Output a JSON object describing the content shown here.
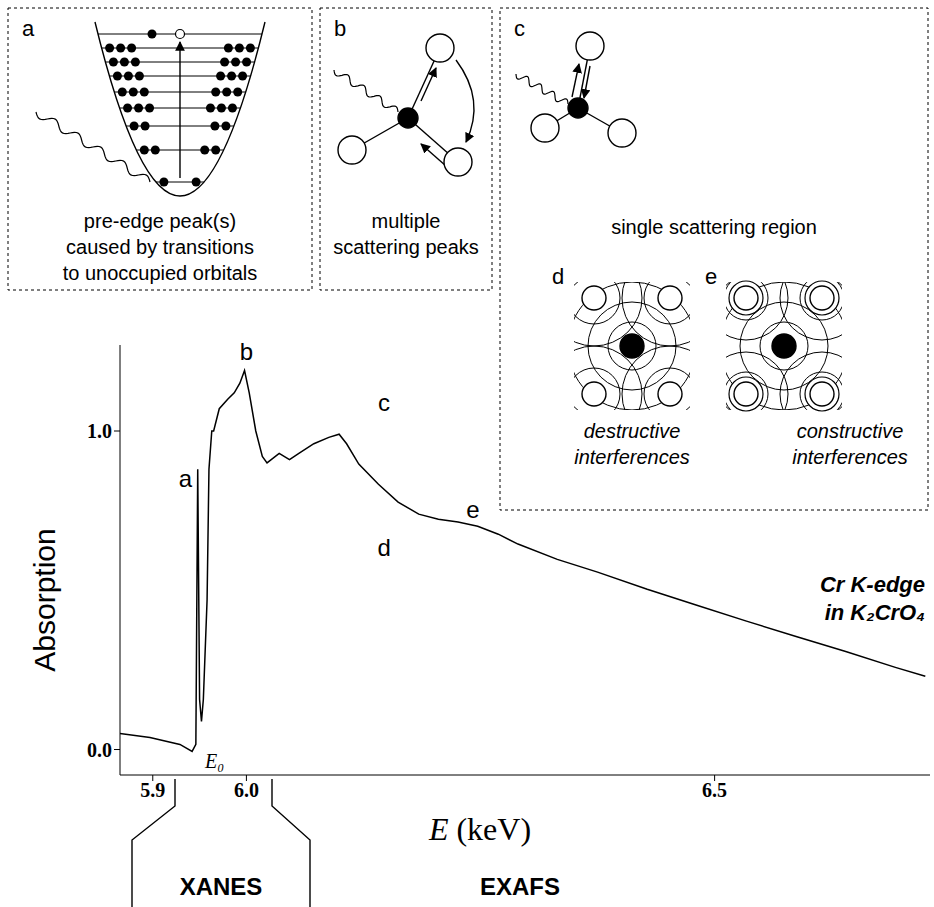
{
  "chart_data": {
    "type": "line",
    "x_label": "E (keV)",
    "y_label": "Absorption",
    "color": "#000000",
    "x": [
      5.865,
      5.897,
      5.929,
      5.942,
      5.946,
      5.948,
      5.95,
      5.952,
      5.954,
      5.958,
      5.96,
      5.963,
      5.965,
      5.971,
      5.98,
      5.987,
      5.993,
      5.998,
      6.003,
      6.01,
      6.017,
      6.022,
      6.035,
      6.046,
      6.056,
      6.072,
      6.088,
      6.099,
      6.107,
      6.12,
      6.141,
      6.162,
      6.184,
      6.205,
      6.226,
      6.247,
      6.269,
      6.29,
      6.332,
      6.375,
      6.428,
      6.481,
      6.534,
      6.587,
      6.64,
      6.693,
      6.725
    ],
    "values": [
      0.05,
      0.038,
      0.016,
      -0.006,
      0.016,
      0.88,
      0.157,
      0.088,
      0.157,
      0.47,
      0.88,
      1.0,
      1.0,
      1.07,
      1.1,
      1.12,
      1.15,
      1.19,
      1.12,
      1.0,
      0.92,
      0.9,
      0.93,
      0.91,
      0.93,
      0.96,
      0.98,
      0.99,
      0.96,
      0.896,
      0.833,
      0.777,
      0.739,
      0.723,
      0.714,
      0.701,
      0.676,
      0.645,
      0.597,
      0.557,
      0.503,
      0.453,
      0.403,
      0.355,
      0.308,
      0.258,
      0.23
    ],
    "xlim": [
      5.865,
      6.73
    ],
    "ylim": [
      -0.08,
      1.27
    ],
    "xticks": [
      5.9,
      {
        "value": 6.0,
        "label": "6.0"
      },
      6.5
    ],
    "yticks": [
      {
        "value": 0,
        "label": "0.0"
      },
      {
        "value": 1,
        "label": "1.0"
      }
    ],
    "grid": false,
    "annotations": [
      {
        "text": "a",
        "x": 5.935,
        "y": 0.85
      },
      {
        "text": "b",
        "x": 6.0,
        "y": 1.25
      },
      {
        "text": "c",
        "x": 6.147,
        "y": 1.09
      },
      {
        "text": "d",
        "x": 6.147,
        "y": 0.635
      },
      {
        "text": "e",
        "x": 6.242,
        "y": 0.755
      }
    ],
    "edge_label": {
      "text": "E₀",
      "x": 5.966,
      "y": -0.035
    },
    "sample_label": [
      "Cr K-edge",
      "in K₂CrO₄"
    ],
    "regions": [
      "XANES",
      "EXAFS"
    ]
  },
  "insets": [
    {
      "letter": "a",
      "caption": [
        "pre-edge peak(s)",
        "caused by transitions",
        "to unoccupied orbitals"
      ]
    },
    {
      "letter": "b",
      "caption": [
        "multiple",
        "scattering peaks"
      ]
    },
    {
      "letter": "c",
      "caption": [
        "single scattering region"
      ]
    },
    {
      "letter": "d",
      "caption": [
        "destructive",
        "interferences"
      ]
    },
    {
      "letter": "e",
      "caption": [
        "constructive",
        "interferences"
      ]
    }
  ]
}
